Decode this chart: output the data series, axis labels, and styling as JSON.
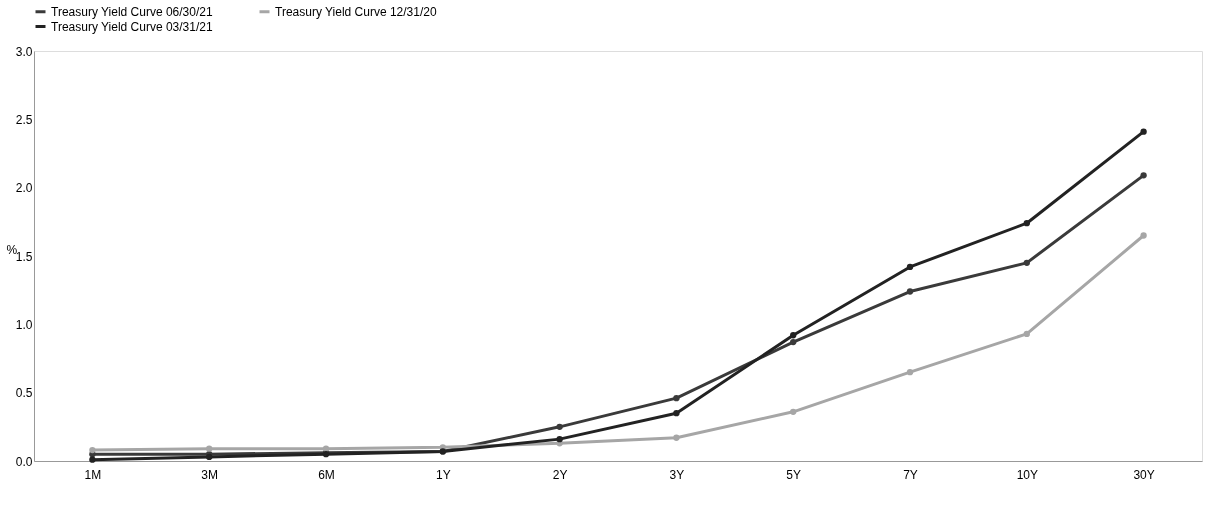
{
  "chart_data": {
    "type": "line",
    "ylabel": "%",
    "categories": [
      "1M",
      "3M",
      "6M",
      "1Y",
      "2Y",
      "3Y",
      "5Y",
      "7Y",
      "10Y",
      "30Y"
    ],
    "series": [
      {
        "name": "Treasury Yield Curve 06/30/21",
        "color": "#3a3a3a",
        "values": [
          0.05,
          0.05,
          0.06,
          0.07,
          0.25,
          0.46,
          0.87,
          1.24,
          1.45,
          2.09
        ]
      },
      {
        "name": "Treasury Yield Curve 12/31/20",
        "color": "#a6a6a6",
        "values": [
          0.08,
          0.09,
          0.09,
          0.1,
          0.13,
          0.17,
          0.36,
          0.65,
          0.93,
          1.65
        ]
      },
      {
        "name": "Treasury Yield Curve 03/31/21",
        "color": "#222222",
        "values": [
          0.01,
          0.03,
          0.05,
          0.07,
          0.16,
          0.35,
          0.92,
          1.42,
          1.74,
          2.41
        ]
      }
    ],
    "ylim": [
      0,
      3
    ],
    "yticks": [
      {
        "value": 0,
        "label": "0.0"
      },
      0.5,
      {
        "value": 1,
        "label": "1.0"
      },
      1.5,
      {
        "value": 2,
        "label": "2.0"
      },
      2.5,
      {
        "value": 3,
        "label": "3.0"
      }
    ],
    "grid": false,
    "legend": "top",
    "marker": "circle",
    "line_style": "solid"
  }
}
